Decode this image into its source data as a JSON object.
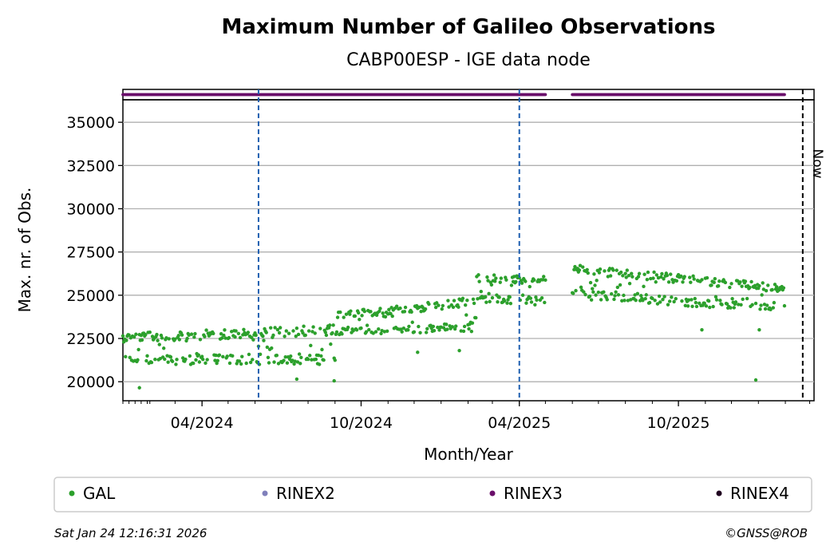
{
  "header": {
    "title": "Maximum Number of Galileo Observations",
    "subtitle": "CABP00ESP - IGE data node"
  },
  "footer": {
    "timestamp": "Sat Jan 24 12:16:31 2026",
    "credit": "©GNSS@ROB"
  },
  "legend": {
    "items": [
      {
        "label": "GAL",
        "color": "#2ca02c"
      },
      {
        "label": "RINEX2",
        "color": "#8080bb"
      },
      {
        "label": "RINEX3",
        "color": "#6a0e6a"
      },
      {
        "label": "RINEX4",
        "color": "#200020"
      }
    ]
  },
  "chart_data": {
    "type": "scatter",
    "title": "Maximum Number of Galileo Observations",
    "subtitle": "CABP00ESP - IGE data node",
    "xlabel": "Month/Year",
    "ylabel": "Max. nr. of Obs.",
    "x_range": [
      "2024-01-01",
      "2026-03-06"
    ],
    "ylim": [
      18900,
      36300
    ],
    "y_ticks": [
      20000,
      22500,
      25000,
      27500,
      30000,
      32500,
      35000
    ],
    "x_ticks": [
      "04/2024",
      "10/2024",
      "04/2025",
      "10/2025"
    ],
    "x_tick_dates": [
      "2024-04-01",
      "2024-10-01",
      "2025-04-01",
      "2025-10-01"
    ],
    "grid": "horizontal",
    "vlines_blue_dashed": [
      "2024-06-05",
      "2025-04-01"
    ],
    "now_line": {
      "date": "2026-02-21",
      "label": "Now"
    },
    "rinex3_availability": [
      [
        "2024-01-01",
        "2025-05-01"
      ],
      [
        "2025-06-01",
        "2026-01-31"
      ]
    ],
    "series": [
      {
        "name": "GAL",
        "color": "#2ca02c",
        "segments": [
          {
            "start": "2024-01-01",
            "end": "2024-09-01",
            "low_start": 21000,
            "low_end": 21000,
            "high_start": 22800,
            "high_end": 23300
          },
          {
            "start": "2024-09-02",
            "end": "2025-02-10",
            "low_start": 22700,
            "low_end": 22900,
            "high_start": 24000,
            "high_end": 24900
          },
          {
            "start": "2025-02-11",
            "end": "2025-05-01",
            "low_start": 24600,
            "low_end": 24400,
            "high_start": 26200,
            "high_end": 26100
          },
          {
            "start": "2025-06-01",
            "end": "2026-01-31",
            "low_start": 24800,
            "low_end": 24000,
            "high_start": 26800,
            "high_end": 25600
          }
        ],
        "outliers": [
          {
            "x": "2024-01-20",
            "y": 19650
          },
          {
            "x": "2024-07-19",
            "y": 20150
          },
          {
            "x": "2024-08-31",
            "y": 20050
          },
          {
            "x": "2024-12-05",
            "y": 21700
          },
          {
            "x": "2025-01-22",
            "y": 21800
          },
          {
            "x": "2025-10-28",
            "y": 23000
          },
          {
            "x": "2025-12-29",
            "y": 20100
          },
          {
            "x": "2026-01-02",
            "y": 23000
          }
        ]
      }
    ]
  }
}
